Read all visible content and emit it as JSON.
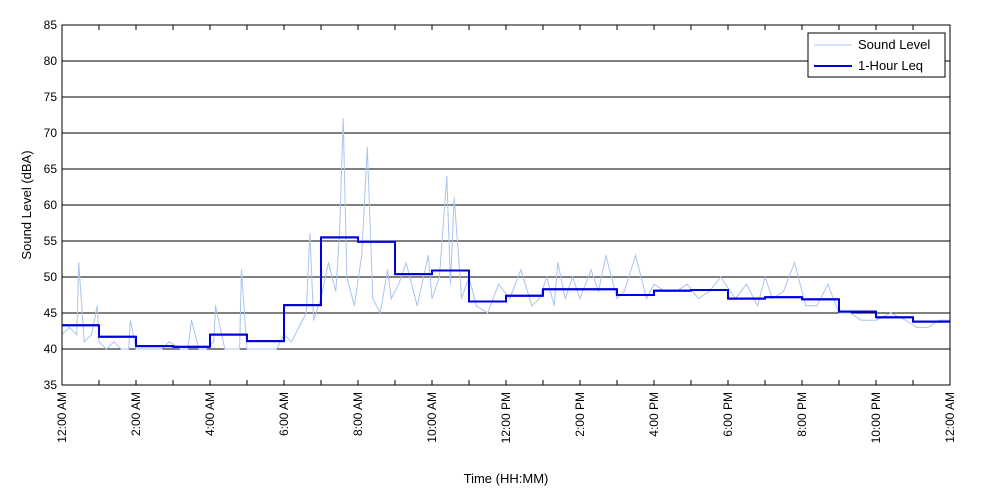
{
  "chart_data": {
    "type": "line",
    "xlabel": "Time (HH:MM)",
    "ylabel": "Sound Level (dBA)",
    "xlim": [
      0,
      24
    ],
    "ylim": [
      35,
      85
    ],
    "yticks": [
      35,
      40,
      45,
      50,
      55,
      60,
      65,
      70,
      75,
      80,
      85
    ],
    "xtick_labels": [
      "12:00 AM",
      "2:00 AM",
      "4:00 AM",
      "6:00 AM",
      "8:00 AM",
      "10:00 AM",
      "12:00 PM",
      "2:00 PM",
      "4:00 PM",
      "6:00 PM",
      "8:00 PM",
      "10:00 PM",
      "12:00 AM"
    ],
    "grid": "horizontal",
    "legend_position": "top-right",
    "colors": {
      "sound_level": "#a9c4f0",
      "leq": "#0000dd"
    },
    "series": [
      {
        "name": "Sound Level",
        "x": [
          0,
          0.2,
          0.4,
          0.45,
          0.6,
          0.8,
          0.95,
          1.0,
          1.2,
          1.4,
          1.6,
          1.8,
          1.85,
          2.0,
          2.2,
          2.5,
          2.7,
          2.9,
          3.2,
          3.4,
          3.5,
          3.7,
          3.9,
          4.1,
          4.15,
          4.4,
          4.6,
          4.8,
          4.85,
          5.0,
          5.2,
          5.5,
          5.8,
          6.0,
          6.2,
          6.4,
          6.6,
          6.7,
          6.8,
          7.0,
          7.2,
          7.4,
          7.5,
          7.6,
          7.7,
          7.9,
          8.1,
          8.25,
          8.4,
          8.6,
          8.8,
          8.9,
          9.1,
          9.3,
          9.6,
          9.9,
          10.0,
          10.2,
          10.4,
          10.5,
          10.6,
          10.8,
          11.0,
          11.2,
          11.5,
          11.8,
          12.1,
          12.4,
          12.7,
          12.9,
          13.1,
          13.3,
          13.4,
          13.6,
          13.8,
          14.0,
          14.3,
          14.5,
          14.7,
          15.0,
          15.2,
          15.5,
          15.8,
          16.0,
          16.3,
          16.6,
          16.9,
          17.2,
          17.5,
          17.8,
          18.2,
          18.5,
          18.8,
          19.0,
          19.2,
          19.5,
          19.8,
          20.1,
          20.4,
          20.7,
          21.0,
          21.3,
          21.6,
          22.0,
          22.4,
          22.8,
          23.1,
          23.4,
          23.7,
          24.0
        ],
        "y": [
          42,
          43,
          42,
          52,
          41,
          42,
          46,
          41,
          40,
          41,
          40,
          40,
          44,
          40,
          40,
          40,
          40,
          41,
          40,
          40,
          44,
          40,
          40,
          41,
          46,
          40,
          40,
          40,
          51,
          40,
          40,
          40,
          40,
          42,
          41,
          43,
          45,
          56,
          44,
          47,
          52,
          48,
          56,
          72,
          50,
          46,
          53,
          68,
          47,
          45,
          51,
          47,
          49,
          52,
          46,
          53,
          47,
          50,
          64,
          49,
          61,
          47,
          50,
          46,
          45,
          49,
          47,
          51,
          46,
          47,
          50,
          46,
          52,
          47,
          50,
          47,
          51,
          48,
          53,
          47,
          48,
          53,
          47,
          49,
          48,
          48,
          49,
          47,
          48,
          50,
          47,
          49,
          46,
          50,
          47,
          48,
          52,
          46,
          46,
          49,
          45,
          45,
          44,
          44,
          45,
          44,
          43,
          43,
          44,
          44
        ],
        "values": [
          42,
          43,
          42,
          52,
          41,
          42,
          46,
          41,
          40,
          41,
          40,
          40,
          44,
          40,
          40,
          40,
          40,
          41,
          40,
          40,
          44,
          40,
          40,
          41,
          46,
          40,
          40,
          40,
          51,
          40,
          40,
          40,
          40,
          42,
          41,
          43,
          45,
          56,
          44,
          47,
          52,
          48,
          56,
          72,
          50,
          46,
          53,
          68,
          47,
          45,
          51,
          47,
          49,
          52,
          46,
          53,
          47,
          50,
          64,
          49,
          61,
          47,
          50,
          46,
          45,
          49,
          47,
          51,
          46,
          47,
          50,
          46,
          52,
          47,
          50,
          47,
          51,
          48,
          53,
          47,
          48,
          53,
          47,
          49,
          48,
          48,
          49,
          47,
          48,
          50,
          47,
          49,
          46,
          50,
          47,
          48,
          52,
          46,
          46,
          49,
          45,
          45,
          44,
          44,
          45,
          44,
          43,
          43,
          44,
          44
        ]
      },
      {
        "name": "1-Hour Leq",
        "x": [
          0,
          1,
          2,
          3,
          4,
          5,
          6,
          7,
          8,
          9,
          10,
          11,
          12,
          13,
          14,
          15,
          16,
          17,
          18,
          19,
          20,
          21,
          22,
          23
        ],
        "values": [
          43.3,
          41.7,
          40.4,
          40.3,
          42.0,
          41.1,
          46.1,
          55.5,
          54.9,
          50.4,
          50.9,
          46.6,
          47.4,
          48.3,
          48.3,
          47.5,
          48.1,
          48.2,
          47.0,
          47.2,
          46.9,
          45.2,
          44.4,
          43.8
        ]
      }
    ]
  }
}
